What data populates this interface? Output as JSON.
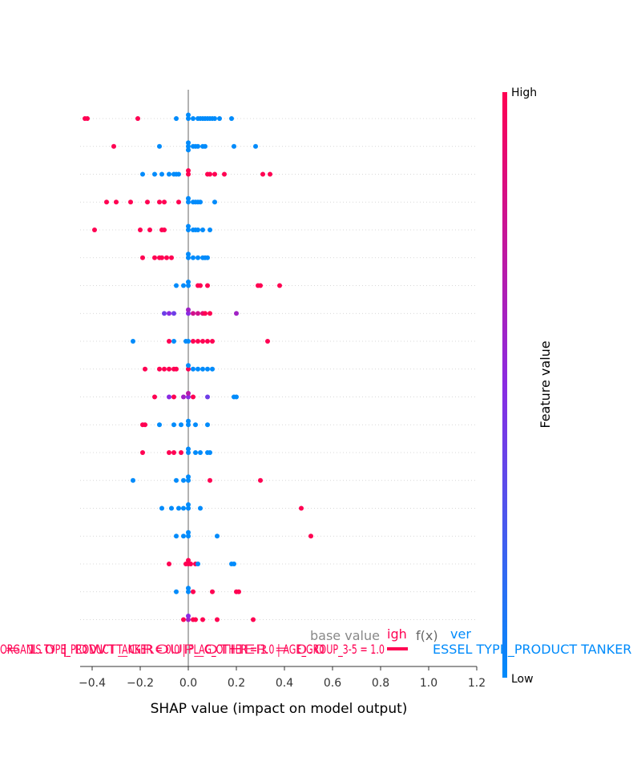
{
  "chart_data": {
    "type": "scatter",
    "subtype": "shap-beeswarm",
    "xlabel": "SHAP value (impact on model output)",
    "xlim": [
      -0.45,
      1.2
    ],
    "xticks": [
      -0.4,
      -0.2,
      0.0,
      0.2,
      0.4,
      0.6,
      0.8,
      1.0,
      1.2
    ],
    "xtick_labels": [
      "−0.4",
      "−0.2",
      "0.0",
      "0.2",
      "0.4",
      "0.6",
      "0.8",
      "1.0",
      "1.2"
    ],
    "n_rows": 19,
    "grid": "dotted horizontal row lines",
    "colorbar": {
      "title": "Feature value",
      "high_label": "High",
      "low_label": "Low",
      "low_color": "#008bfb",
      "mid_color": "#8a2be2",
      "high_color": "#ff0052"
    },
    "rows": [
      {
        "points": [
          [
            -0.43,
            1
          ],
          [
            -0.42,
            1
          ],
          [
            -0.21,
            1
          ],
          [
            -0.05,
            0
          ],
          [
            0,
            0
          ],
          [
            0,
            0
          ],
          [
            0.02,
            0
          ],
          [
            0.04,
            0
          ],
          [
            0.05,
            0
          ],
          [
            0.06,
            0
          ],
          [
            0.07,
            0
          ],
          [
            0.08,
            0
          ],
          [
            0.09,
            0
          ],
          [
            0.1,
            0
          ],
          [
            0.11,
            0
          ],
          [
            0.13,
            0
          ],
          [
            0.18,
            0
          ]
        ]
      },
      {
        "points": [
          [
            -0.31,
            1
          ],
          [
            -0.12,
            0
          ],
          [
            0,
            0
          ],
          [
            0,
            0
          ],
          [
            0,
            0
          ],
          [
            0.02,
            0
          ],
          [
            0.03,
            0
          ],
          [
            0.04,
            0
          ],
          [
            0.06,
            0
          ],
          [
            0.07,
            0
          ],
          [
            0.19,
            0
          ],
          [
            0.28,
            0
          ]
        ]
      },
      {
        "points": [
          [
            -0.19,
            0
          ],
          [
            -0.14,
            0
          ],
          [
            -0.11,
            0
          ],
          [
            -0.08,
            0
          ],
          [
            -0.06,
            0
          ],
          [
            -0.05,
            0
          ],
          [
            -0.04,
            0
          ],
          [
            0,
            1
          ],
          [
            0,
            1
          ],
          [
            0.08,
            1
          ],
          [
            0.09,
            1
          ],
          [
            0.11,
            1
          ],
          [
            0.15,
            1
          ],
          [
            0.31,
            1
          ],
          [
            0.34,
            1
          ]
        ]
      },
      {
        "points": [
          [
            -0.34,
            1
          ],
          [
            -0.3,
            1
          ],
          [
            -0.24,
            1
          ],
          [
            -0.17,
            1
          ],
          [
            -0.12,
            1
          ],
          [
            -0.1,
            1
          ],
          [
            -0.04,
            1
          ],
          [
            0,
            0
          ],
          [
            0,
            0
          ],
          [
            0.02,
            0
          ],
          [
            0.03,
            0
          ],
          [
            0.04,
            0
          ],
          [
            0.05,
            0
          ],
          [
            0.11,
            0
          ]
        ]
      },
      {
        "points": [
          [
            -0.39,
            1
          ],
          [
            -0.2,
            1
          ],
          [
            -0.16,
            1
          ],
          [
            -0.11,
            1
          ],
          [
            -0.1,
            1
          ],
          [
            0,
            0
          ],
          [
            0,
            0
          ],
          [
            0.02,
            0
          ],
          [
            0.03,
            0
          ],
          [
            0.04,
            0
          ],
          [
            0.06,
            0
          ],
          [
            0.09,
            0
          ]
        ]
      },
      {
        "points": [
          [
            -0.19,
            1
          ],
          [
            -0.14,
            1
          ],
          [
            -0.12,
            1
          ],
          [
            -0.11,
            1
          ],
          [
            -0.09,
            1
          ],
          [
            -0.07,
            1
          ],
          [
            0,
            0
          ],
          [
            0,
            0
          ],
          [
            0.02,
            0
          ],
          [
            0.04,
            0
          ],
          [
            0.06,
            0
          ],
          [
            0.07,
            0
          ],
          [
            0.08,
            0
          ]
        ]
      },
      {
        "points": [
          [
            -0.05,
            0
          ],
          [
            -0.02,
            0
          ],
          [
            0,
            0
          ],
          [
            0,
            0
          ],
          [
            0.04,
            1
          ],
          [
            0.05,
            1
          ],
          [
            0.08,
            1
          ],
          [
            0.29,
            1
          ],
          [
            0.3,
            1
          ],
          [
            0.38,
            1
          ]
        ]
      },
      {
        "points": [
          [
            -0.1,
            0.4
          ],
          [
            -0.08,
            0.5
          ],
          [
            -0.06,
            0.4
          ],
          [
            0,
            0.5
          ],
          [
            0,
            0.6
          ],
          [
            0.02,
            0.8
          ],
          [
            0.04,
            0.8
          ],
          [
            0.06,
            0.9
          ],
          [
            0.07,
            1
          ],
          [
            0.09,
            1
          ],
          [
            0.2,
            0.6
          ]
        ]
      },
      {
        "points": [
          [
            -0.23,
            0
          ],
          [
            -0.08,
            1
          ],
          [
            -0.06,
            0
          ],
          [
            -0.01,
            0
          ],
          [
            0,
            0
          ],
          [
            0.02,
            1
          ],
          [
            0.04,
            1
          ],
          [
            0.06,
            1
          ],
          [
            0.08,
            1
          ],
          [
            0.1,
            1
          ],
          [
            0.33,
            1
          ]
        ]
      },
      {
        "points": [
          [
            -0.18,
            1
          ],
          [
            -0.12,
            1
          ],
          [
            -0.1,
            1
          ],
          [
            -0.08,
            1
          ],
          [
            -0.06,
            1
          ],
          [
            -0.05,
            1
          ],
          [
            0,
            1
          ],
          [
            0,
            0
          ],
          [
            0.02,
            0
          ],
          [
            0.04,
            0
          ],
          [
            0.06,
            0
          ],
          [
            0.08,
            0
          ],
          [
            0.1,
            0
          ]
        ]
      },
      {
        "points": [
          [
            -0.14,
            1
          ],
          [
            -0.08,
            0.5
          ],
          [
            -0.06,
            1
          ],
          [
            -0.02,
            0.6
          ],
          [
            0,
            0.5
          ],
          [
            0,
            0.7
          ],
          [
            0.02,
            1
          ],
          [
            0.08,
            0.4
          ],
          [
            0.19,
            0
          ],
          [
            0.2,
            0
          ]
        ]
      },
      {
        "points": [
          [
            -0.19,
            1
          ],
          [
            -0.18,
            1
          ],
          [
            -0.12,
            0
          ],
          [
            -0.06,
            0
          ],
          [
            -0.03,
            0
          ],
          [
            0,
            0
          ],
          [
            0,
            0
          ],
          [
            0.03,
            0
          ],
          [
            0.08,
            0
          ]
        ]
      },
      {
        "points": [
          [
            -0.19,
            1
          ],
          [
            -0.08,
            1
          ],
          [
            -0.06,
            1
          ],
          [
            -0.03,
            1
          ],
          [
            0,
            0
          ],
          [
            0,
            0
          ],
          [
            0.03,
            0
          ],
          [
            0.05,
            0
          ],
          [
            0.08,
            0
          ],
          [
            0.09,
            0
          ]
        ]
      },
      {
        "points": [
          [
            -0.23,
            0
          ],
          [
            -0.05,
            0
          ],
          [
            -0.02,
            0
          ],
          [
            0,
            0
          ],
          [
            0,
            0
          ],
          [
            0.09,
            1
          ],
          [
            0.3,
            1
          ]
        ]
      },
      {
        "points": [
          [
            -0.11,
            0
          ],
          [
            -0.07,
            0
          ],
          [
            -0.04,
            0
          ],
          [
            -0.02,
            0
          ],
          [
            0,
            0
          ],
          [
            0,
            0
          ],
          [
            0.05,
            0
          ],
          [
            0.47,
            1
          ]
        ]
      },
      {
        "points": [
          [
            -0.05,
            0
          ],
          [
            -0.02,
            0
          ],
          [
            0,
            0
          ],
          [
            0,
            0
          ],
          [
            0.12,
            0
          ],
          [
            0.51,
            1
          ]
        ]
      },
      {
        "points": [
          [
            -0.08,
            1
          ],
          [
            -0.01,
            1
          ],
          [
            0,
            1
          ],
          [
            0,
            1
          ],
          [
            0.01,
            1
          ],
          [
            0.03,
            1
          ],
          [
            0.04,
            0
          ],
          [
            0.18,
            0
          ],
          [
            0.19,
            0
          ]
        ]
      },
      {
        "points": [
          [
            -0.05,
            0
          ],
          [
            0,
            0
          ],
          [
            0,
            0
          ],
          [
            0.02,
            1
          ],
          [
            0.1,
            1
          ],
          [
            0.2,
            1
          ],
          [
            0.21,
            1
          ]
        ]
      },
      {
        "points": [
          [
            -0.02,
            1
          ],
          [
            0,
            0.6
          ],
          [
            0,
            0.5
          ],
          [
            0.02,
            1
          ],
          [
            0.03,
            1
          ],
          [
            0.06,
            1
          ],
          [
            0.12,
            1
          ],
          [
            0.27,
            1
          ]
        ]
      }
    ],
    "force_overlay": {
      "base_value_label": "base value",
      "higher_fragment": "igh",
      "fx_label": "f(x)",
      "lower_fragment": "ver",
      "right_feature_text": "ESSEL TYPE_PRODUCT TANKER",
      "left_feature_text": "ORGANIS TYPE_PRODUCT TANKER = 0.0 | FLAG_OTHER = 1.0 | AGE_GROUP_3-5 = 1.0",
      "left_feature_text_2": "= 1.0 | DWT_GROUP_OTHER = 0.0"
    }
  }
}
